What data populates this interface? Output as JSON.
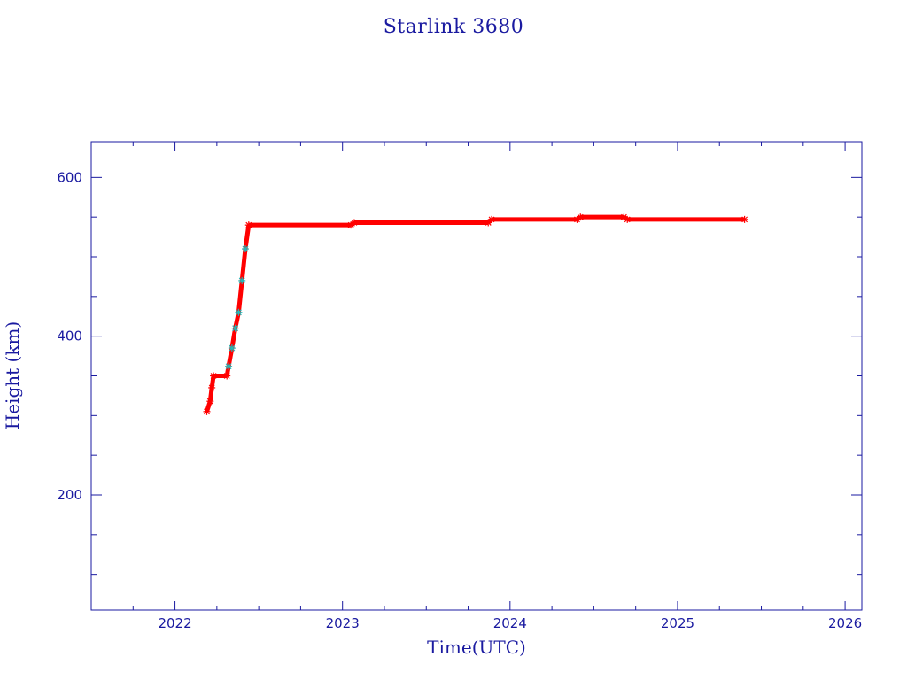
{
  "chart_data": {
    "type": "scatter",
    "title": "Starlink 3680",
    "xlabel": "Time(UTC)",
    "ylabel": "Height (km)",
    "xlim": [
      2021.5,
      2026.1
    ],
    "ylim": [
      55,
      645
    ],
    "x_ticks": [
      {
        "value": 2022,
        "label": "2022"
      },
      {
        "value": 2023,
        "label": "2023"
      },
      {
        "value": 2024,
        "label": "2024"
      },
      {
        "value": 2025,
        "label": "2025"
      },
      {
        "value": 2026,
        "label": "2026"
      }
    ],
    "y_ticks": [
      {
        "value": 200,
        "label": "200"
      },
      {
        "value": 400,
        "label": "400"
      },
      {
        "value": 600,
        "label": "600"
      }
    ],
    "x_minor_step": 0.25,
    "y_minor_step": 50,
    "grid": false,
    "colors": {
      "frame": "#1a1aa0",
      "series": "#ff0000",
      "highlight": "#22b8b8"
    },
    "series": [
      {
        "values": [
          [
            2022.19,
            305
          ],
          [
            2022.21,
            318
          ],
          [
            2022.22,
            335
          ],
          [
            2022.23,
            350
          ],
          [
            2022.31,
            350
          ],
          [
            2022.32,
            362
          ],
          [
            2022.34,
            385
          ],
          [
            2022.36,
            410
          ],
          [
            2022.38,
            430
          ],
          [
            2022.4,
            470
          ],
          [
            2022.42,
            510
          ],
          [
            2022.44,
            540
          ],
          [
            2023.05,
            540
          ],
          [
            2023.07,
            543
          ],
          [
            2023.87,
            543
          ],
          [
            2023.89,
            547
          ],
          [
            2024.4,
            547
          ],
          [
            2024.42,
            550
          ],
          [
            2024.68,
            550
          ],
          [
            2024.7,
            547
          ],
          [
            2025.4,
            547
          ]
        ]
      }
    ]
  }
}
